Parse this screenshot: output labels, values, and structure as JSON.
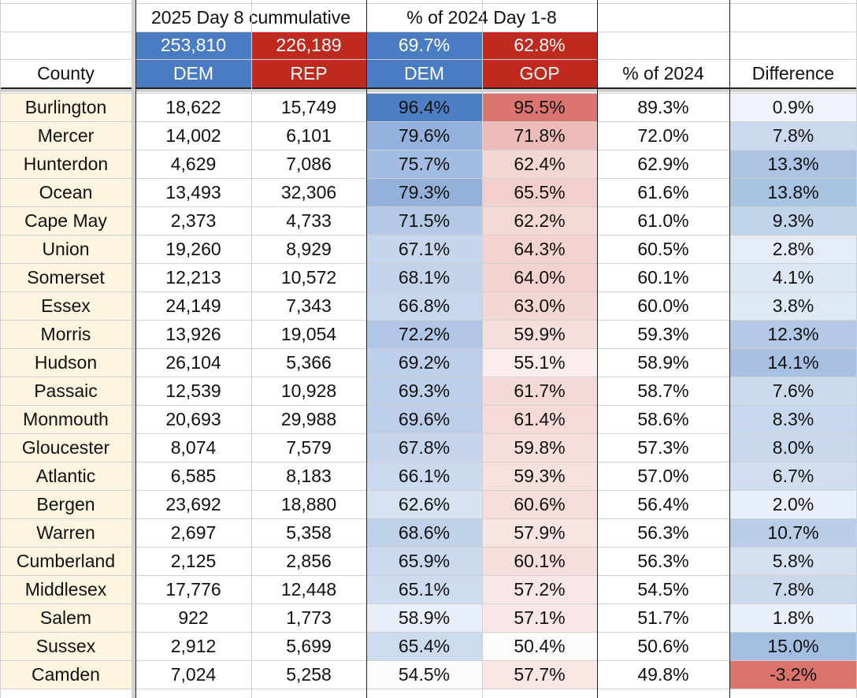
{
  "header": {
    "group1_title": "2025 Day 8 cummulative",
    "group2_title": "% of 2024 Day 1-8",
    "totals": [
      "253,810",
      "226,189",
      "69.7%",
      "62.8%"
    ],
    "columns": [
      "County",
      "DEM",
      "REP",
      "DEM",
      "GOP",
      "% of 2024",
      "Difference"
    ]
  },
  "colors": {
    "dem_header": "#4a7cc4",
    "rep_header": "#c0291e",
    "county_fill": "#fdf5df",
    "blue_scale_low": "#ffffff",
    "blue_scale_high": "#4a7cc4",
    "red_scale_low": "#ffffff",
    "red_scale_high": "#d9736c",
    "negative_fill": "#d9736c"
  },
  "rows": [
    {
      "county": "Burlington",
      "dem": "18,622",
      "rep": "15,749",
      "dem_pct": "96.4%",
      "gop_pct": "95.5%",
      "pct_2024": "89.3%",
      "diff": "0.9%"
    },
    {
      "county": "Mercer",
      "dem": "14,002",
      "rep": "6,101",
      "dem_pct": "79.6%",
      "gop_pct": "71.8%",
      "pct_2024": "72.0%",
      "diff": "7.8%"
    },
    {
      "county": "Hunterdon",
      "dem": "4,629",
      "rep": "7,086",
      "dem_pct": "75.7%",
      "gop_pct": "62.4%",
      "pct_2024": "62.9%",
      "diff": "13.3%"
    },
    {
      "county": "Ocean",
      "dem": "13,493",
      "rep": "32,306",
      "dem_pct": "79.3%",
      "gop_pct": "65.5%",
      "pct_2024": "61.6%",
      "diff": "13.8%"
    },
    {
      "county": "Cape May",
      "dem": "2,373",
      "rep": "4,733",
      "dem_pct": "71.5%",
      "gop_pct": "62.2%",
      "pct_2024": "61.0%",
      "diff": "9.3%"
    },
    {
      "county": "Union",
      "dem": "19,260",
      "rep": "8,929",
      "dem_pct": "67.1%",
      "gop_pct": "64.3%",
      "pct_2024": "60.5%",
      "diff": "2.8%"
    },
    {
      "county": "Somerset",
      "dem": "12,213",
      "rep": "10,572",
      "dem_pct": "68.1%",
      "gop_pct": "64.0%",
      "pct_2024": "60.1%",
      "diff": "4.1%"
    },
    {
      "county": "Essex",
      "dem": "24,149",
      "rep": "7,343",
      "dem_pct": "66.8%",
      "gop_pct": "63.0%",
      "pct_2024": "60.0%",
      "diff": "3.8%"
    },
    {
      "county": "Morris",
      "dem": "13,926",
      "rep": "19,054",
      "dem_pct": "72.2%",
      "gop_pct": "59.9%",
      "pct_2024": "59.3%",
      "diff": "12.3%"
    },
    {
      "county": "Hudson",
      "dem": "26,104",
      "rep": "5,366",
      "dem_pct": "69.2%",
      "gop_pct": "55.1%",
      "pct_2024": "58.9%",
      "diff": "14.1%"
    },
    {
      "county": "Passaic",
      "dem": "12,539",
      "rep": "10,928",
      "dem_pct": "69.3%",
      "gop_pct": "61.7%",
      "pct_2024": "58.7%",
      "diff": "7.6%"
    },
    {
      "county": "Monmouth",
      "dem": "20,693",
      "rep": "29,988",
      "dem_pct": "69.6%",
      "gop_pct": "61.4%",
      "pct_2024": "58.6%",
      "diff": "8.3%"
    },
    {
      "county": "Gloucester",
      "dem": "8,074",
      "rep": "7,579",
      "dem_pct": "67.8%",
      "gop_pct": "59.8%",
      "pct_2024": "57.3%",
      "diff": "8.0%"
    },
    {
      "county": "Atlantic",
      "dem": "6,585",
      "rep": "8,183",
      "dem_pct": "66.1%",
      "gop_pct": "59.3%",
      "pct_2024": "57.0%",
      "diff": "6.7%"
    },
    {
      "county": "Bergen",
      "dem": "23,692",
      "rep": "18,880",
      "dem_pct": "62.6%",
      "gop_pct": "60.6%",
      "pct_2024": "56.4%",
      "diff": "2.0%"
    },
    {
      "county": "Warren",
      "dem": "2,697",
      "rep": "5,358",
      "dem_pct": "68.6%",
      "gop_pct": "57.9%",
      "pct_2024": "56.3%",
      "diff": "10.7%"
    },
    {
      "county": "Cumberland",
      "dem": "2,125",
      "rep": "2,856",
      "dem_pct": "65.9%",
      "gop_pct": "60.1%",
      "pct_2024": "56.3%",
      "diff": "5.8%"
    },
    {
      "county": "Middlesex",
      "dem": "17,776",
      "rep": "12,448",
      "dem_pct": "65.1%",
      "gop_pct": "57.2%",
      "pct_2024": "54.5%",
      "diff": "7.8%"
    },
    {
      "county": "Salem",
      "dem": "922",
      "rep": "1,773",
      "dem_pct": "58.9%",
      "gop_pct": "57.1%",
      "pct_2024": "51.7%",
      "diff": "1.8%"
    },
    {
      "county": "Sussex",
      "dem": "2,912",
      "rep": "5,699",
      "dem_pct": "65.4%",
      "gop_pct": "50.4%",
      "pct_2024": "50.6%",
      "diff": "15.0%"
    },
    {
      "county": "Camden",
      "dem": "7,024",
      "rep": "5,258",
      "dem_pct": "54.5%",
      "gop_pct": "57.7%",
      "pct_2024": "49.8%",
      "diff": "-3.2%"
    }
  ]
}
